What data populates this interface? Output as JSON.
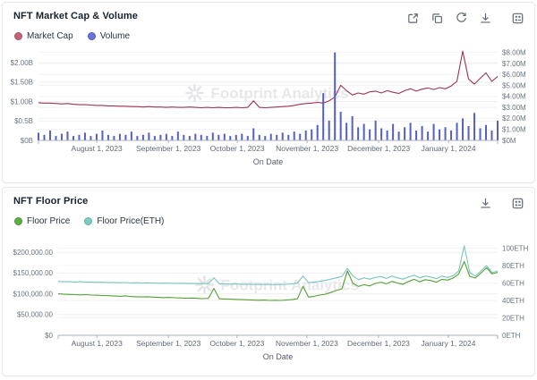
{
  "watermark_logo": "starburst",
  "charts": [
    {
      "title": "NFT Market Cap & Volume",
      "watermark": "Footprint Analytics",
      "xlabel": "On Date",
      "toolbar_icons": [
        "share-icon",
        "copy-icon",
        "refresh-icon",
        "download-icon",
        "api-qr-icon"
      ],
      "x_ticks": [
        {
          "label": "August 1, 2023",
          "pos": 0.127
        },
        {
          "label": "September 1, 2023",
          "pos": 0.283
        },
        {
          "label": "October 1, 2023",
          "pos": 0.433
        },
        {
          "label": "November 1, 2023",
          "pos": 0.585
        },
        {
          "label": "December 1, 2023",
          "pos": 0.741
        },
        {
          "label": "January 1, 2024",
          "pos": 0.893
        }
      ],
      "left_axis": {
        "max": 2.35,
        "unit": "USD billions",
        "ticks": [
          {
            "label": "$2.00B",
            "value": 2.0
          },
          {
            "label": "$1.50B",
            "value": 1.5
          },
          {
            "label": "$1.00B",
            "value": 1.0
          },
          {
            "label": "$0.5B",
            "value": 0.5
          },
          {
            "label": "$0B",
            "value": 0
          }
        ]
      },
      "right_axis": {
        "max": 8.3,
        "unit": "USD millions",
        "ticks": [
          {
            "label": "$8.00M",
            "value": 8
          },
          {
            "label": "$7.00M",
            "value": 7
          },
          {
            "label": "$6.00M",
            "value": 6
          },
          {
            "label": "$5.00M",
            "value": 5
          },
          {
            "label": "$4.00M",
            "value": 4
          },
          {
            "label": "$3.00M",
            "value": 3
          },
          {
            "label": "$2.00M",
            "value": 2
          },
          {
            "label": "$1.00M",
            "value": 1
          },
          {
            "label": "$0M",
            "value": 0
          }
        ]
      },
      "series": [
        {
          "name": "Market Cap",
          "type": "line",
          "axis": "left",
          "color": "#9a3350",
          "dot": "#c4647a",
          "ring": "#a54e66",
          "values": [
            0.97,
            0.96,
            0.96,
            0.95,
            0.94,
            0.95,
            0.93,
            0.92,
            0.92,
            0.91,
            0.9,
            0.9,
            0.89,
            0.89,
            0.88,
            0.88,
            0.87,
            0.87,
            0.86,
            0.87,
            0.86,
            0.86,
            0.85,
            0.86,
            0.85,
            0.85,
            0.86,
            0.85,
            0.84,
            0.85,
            0.84,
            0.85,
            0.84,
            0.84,
            0.85,
            0.84,
            0.85,
            1.02,
            0.85,
            0.84,
            0.85,
            0.86,
            0.87,
            0.88,
            0.9,
            0.93,
            0.95,
            0.96,
            0.98,
            0.96,
            1.02,
            1.12,
            1.42,
            1.28,
            1.17,
            1.22,
            1.19,
            1.25,
            1.27,
            1.22,
            1.28,
            1.24,
            1.21,
            1.28,
            1.33,
            1.27,
            1.32,
            1.35,
            1.31,
            1.36,
            1.33,
            1.4,
            1.52,
            2.3,
            1.58,
            1.45,
            1.6,
            1.74,
            1.52,
            1.65
          ]
        },
        {
          "name": "Volume",
          "type": "bar",
          "axis": "right",
          "color": "#5560c5",
          "dot": "#6a73d8",
          "ring": "#4d57c4",
          "values": [
            0.7,
            0.5,
            0.9,
            0.4,
            0.6,
            0.8,
            0.4,
            0.5,
            0.7,
            0.4,
            0.6,
            0.9,
            0.5,
            0.4,
            0.6,
            0.5,
            0.8,
            0.4,
            0.5,
            0.7,
            0.4,
            0.5,
            0.6,
            0.4,
            0.8,
            0.5,
            0.4,
            0.6,
            0.5,
            0.4,
            0.7,
            0.5,
            0.6,
            0.4,
            0.5,
            0.6,
            0.4,
            1.1,
            0.5,
            0.4,
            0.6,
            0.5,
            0.7,
            0.5,
            0.8,
            0.6,
            0.9,
            1.0,
            1.4,
            4.3,
            1.8,
            8.0,
            2.6,
            1.6,
            2.2,
            1.2,
            1.5,
            1.0,
            1.8,
            1.1,
            0.9,
            1.5,
            0.8,
            1.2,
            1.6,
            0.9,
            1.3,
            0.8,
            1.5,
            1.0,
            1.2,
            0.9,
            1.6,
            2.0,
            1.3,
            2.5,
            1.1,
            1.4,
            0.9,
            1.8
          ]
        }
      ]
    },
    {
      "title": "NFT Floor Price",
      "watermark": "Footprint Analytics",
      "xlabel": "On Date",
      "toolbar_icons": [
        "download-icon",
        "api-qr-icon"
      ],
      "x_ticks": [
        {
          "label": "August 1, 2023",
          "pos": 0.088
        },
        {
          "label": "September 1, 2023",
          "pos": 0.251
        },
        {
          "label": "October 1, 2023",
          "pos": 0.407
        },
        {
          "label": "November 1, 2023",
          "pos": 0.566
        },
        {
          "label": "December 1, 2023",
          "pos": 0.729
        },
        {
          "label": "January 1, 2024",
          "pos": 0.888
        }
      ],
      "left_axis": {
        "max": 235000,
        "unit": "USD",
        "ticks": [
          {
            "label": "$200,000.00",
            "value": 200000
          },
          {
            "label": "$150,000.00",
            "value": 150000
          },
          {
            "label": "$100,000.00",
            "value": 100000
          },
          {
            "label": "$50,000.00",
            "value": 50000
          },
          {
            "label": "$0",
            "value": 0
          }
        ]
      },
      "right_axis": {
        "max": 112,
        "unit": "ETH",
        "ticks": [
          {
            "label": "100ETH",
            "value": 100
          },
          {
            "label": "80ETH",
            "value": 80
          },
          {
            "label": "60ETH",
            "value": 60
          },
          {
            "label": "40ETH",
            "value": 40
          },
          {
            "label": "20ETH",
            "value": 20
          },
          {
            "label": "0ETH",
            "value": 0
          }
        ]
      },
      "series": [
        {
          "name": "Floor Price",
          "type": "line",
          "axis": "left",
          "color": "#55a033",
          "dot": "#5fae43",
          "ring": "#4a9132",
          "values": [
            100000,
            99000,
            98500,
            98000,
            97500,
            98000,
            97000,
            96500,
            96000,
            95500,
            95000,
            94000,
            95000,
            93500,
            93000,
            92500,
            93000,
            92000,
            91500,
            91000,
            91500,
            90500,
            90000,
            89500,
            90000,
            89000,
            88500,
            89000,
            113000,
            88000,
            87500,
            87000,
            86500,
            86000,
            85500,
            85000,
            84500,
            85000,
            84000,
            84500,
            84000,
            85000,
            86000,
            88000,
            118000,
            92000,
            94000,
            97000,
            99000,
            103000,
            108000,
            112000,
            155000,
            125000,
            118000,
            122000,
            119000,
            125000,
            128000,
            124000,
            130000,
            126000,
            123000,
            130000,
            135000,
            129000,
            134000,
            132000,
            128000,
            135000,
            133000,
            138000,
            148000,
            178000,
            142000,
            138000,
            150000,
            163000,
            148000,
            152000
          ]
        },
        {
          "name": "Floor Price(ETH)",
          "type": "line",
          "axis": "right",
          "color": "#7ac4bf",
          "dot": "#7fc9c4",
          "ring": "#62b3ad",
          "values": [
            62,
            61.5,
            61.8,
            61.2,
            61.5,
            61,
            61.2,
            60.8,
            61,
            60.5,
            60.8,
            60.4,
            60.6,
            60.2,
            60.4,
            60,
            60.3,
            60,
            59.8,
            60,
            59.8,
            59.6,
            59.8,
            59.5,
            59.7,
            59.4,
            59.5,
            59.3,
            66,
            59.2,
            59,
            58.8,
            59,
            58.7,
            58.8,
            58.5,
            58.6,
            58.4,
            58.5,
            58.3,
            58.4,
            58.6,
            59,
            60,
            68,
            60.5,
            61,
            62,
            63,
            64.5,
            66,
            67.5,
            77,
            68,
            64,
            66,
            64.5,
            66.5,
            67.5,
            65.5,
            68,
            66,
            64.5,
            67,
            69,
            66,
            68,
            67,
            65,
            68,
            66.5,
            68.5,
            74,
            103,
            72,
            68,
            74,
            80,
            72,
            74
          ]
        }
      ]
    }
  ],
  "chart_data": "see charts[] above — full series, axes, ticks and labels"
}
